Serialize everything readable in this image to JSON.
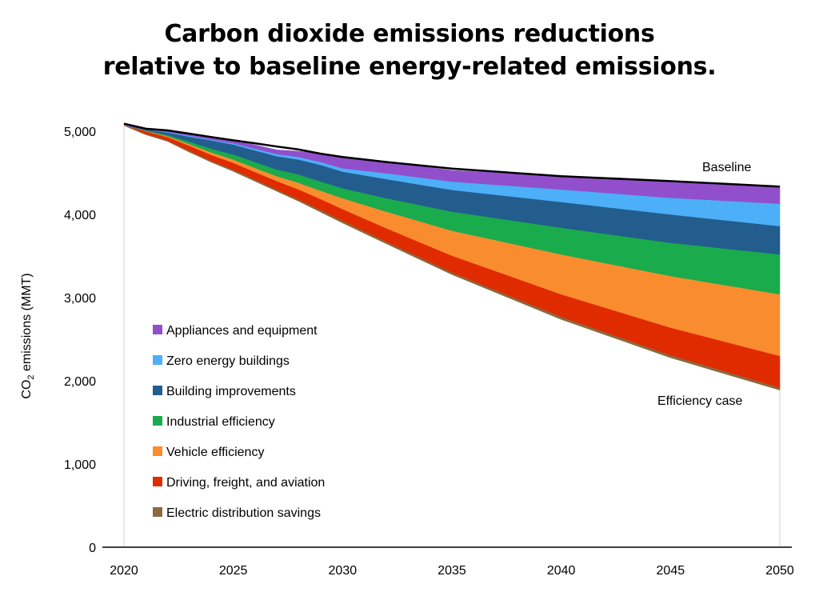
{
  "chart_data": {
    "type": "area",
    "title": [
      "Carbon dioxide emissions reductions",
      "relative to baseline energy-related emissions."
    ],
    "ylabel": "CO2 emissions (MMT)",
    "ylabel_parts": {
      "pre": "CO",
      "sub": "2",
      "post": " emissions (MMT)"
    },
    "xlabel": "",
    "xlim": [
      2020,
      2050
    ],
    "ylim": [
      0,
      5000
    ],
    "x_ticks": [
      "2020",
      "2025",
      "2030",
      "2035",
      "2040",
      "2045",
      "2050"
    ],
    "y_ticks": [
      "0",
      "1,000",
      "2,000",
      "3,000",
      "4,000",
      "5,000"
    ],
    "x": [
      2020,
      2021,
      2022,
      2023,
      2024,
      2025,
      2026,
      2027,
      2028,
      2029,
      2030,
      2032,
      2035,
      2040,
      2045,
      2050
    ],
    "baseline": {
      "label": "Baseline",
      "values": [
        5090,
        5030,
        5010,
        4970,
        4930,
        4890,
        4855,
        4815,
        4780,
        4730,
        4690,
        4630,
        4550,
        4460,
        4400,
        4335
      ]
    },
    "efficiency_case": {
      "label": "Efficiency case",
      "values": [
        5070,
        4960,
        4880,
        4750,
        4630,
        4520,
        4400,
        4280,
        4160,
        4030,
        3900,
        3650,
        3280,
        2740,
        2280,
        1890
      ]
    },
    "series": [
      {
        "name": "Electric distribution savings",
        "color": "#8c6a3f",
        "values": [
          0,
          10,
          10,
          15,
          15,
          20,
          20,
          20,
          20,
          25,
          25,
          25,
          25,
          30,
          30,
          30
        ]
      },
      {
        "name": "Driving, freight, and aviation",
        "color": "#e02b00",
        "values": [
          0,
          30,
          40,
          60,
          70,
          80,
          90,
          100,
          120,
          130,
          140,
          160,
          200,
          270,
          330,
          380
        ]
      },
      {
        "name": "Vehicle efficiency",
        "color": "#fa8c30",
        "values": [
          0,
          5,
          10,
          20,
          30,
          40,
          50,
          60,
          80,
          100,
          130,
          200,
          300,
          480,
          620,
          740
        ]
      },
      {
        "name": "Industrial efficiency",
        "color": "#1aab4c",
        "values": [
          0,
          5,
          15,
          30,
          45,
          60,
          70,
          80,
          100,
          110,
          120,
          160,
          230,
          320,
          400,
          480
        ]
      },
      {
        "name": "Building improvements",
        "color": "#235d8e",
        "values": [
          0,
          10,
          30,
          60,
          100,
          120,
          140,
          160,
          180,
          200,
          200,
          230,
          260,
          310,
          340,
          340
        ]
      },
      {
        "name": "Zero energy buildings",
        "color": "#4daff8",
        "values": [
          0,
          0,
          5,
          10,
          10,
          15,
          20,
          25,
          30,
          35,
          40,
          70,
          100,
          150,
          200,
          270
        ]
      },
      {
        "name": "Appliances and equipment",
        "color": "#914fcc",
        "values": [
          0,
          10,
          20,
          25,
          30,
          35,
          45,
          50,
          70,
          100,
          135,
          135,
          135,
          160,
          200,
          205
        ]
      }
    ],
    "legend_order": [
      "Appliances and equipment",
      "Zero energy buildings",
      "Building improvements",
      "Industrial efficiency",
      "Vehicle efficiency",
      "Driving, freight, and aviation",
      "Electric distribution savings"
    ],
    "legend_position": "left-bottom, inside plot",
    "grid": false
  }
}
